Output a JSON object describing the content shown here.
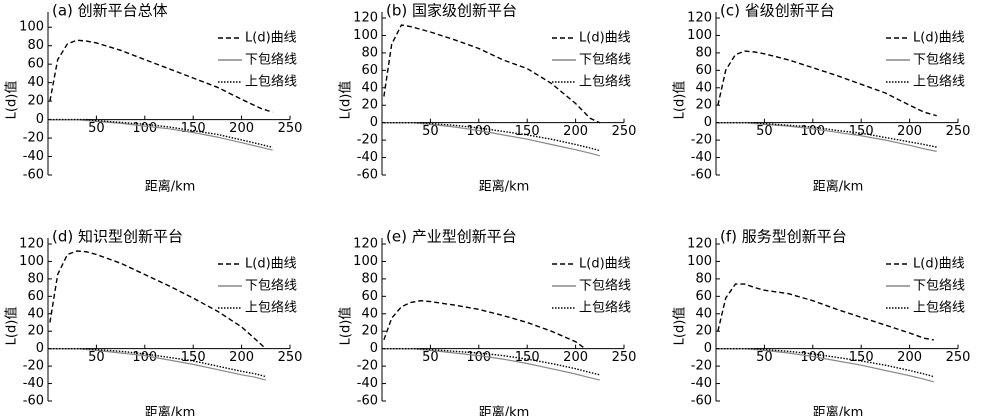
{
  "chart_data": [
    {
      "type": "line",
      "title": "(a) 创新平台总体",
      "xlabel": "距离/km",
      "ylabel": "L(d)值",
      "x": [
        2,
        10,
        20,
        30,
        40,
        50,
        75,
        100,
        125,
        150,
        175,
        200,
        220,
        232
      ],
      "xlim": [
        0,
        250
      ],
      "xticks": [
        50,
        100,
        150,
        200,
        250
      ],
      "ylim": [
        -60,
        110
      ],
      "yticks": [
        -60,
        -40,
        -20,
        0,
        20,
        40,
        60,
        80,
        100
      ],
      "series": [
        {
          "name": "L(d)曲线",
          "color": "#000000",
          "style": "dashed",
          "values": [
            20,
            65,
            82,
            86,
            85,
            83,
            75,
            65,
            55,
            45,
            35,
            22,
            12,
            8
          ]
        },
        {
          "name": "下包络线",
          "color": "#888888",
          "style": "solid",
          "values": [
            0,
            0,
            0,
            0,
            -1,
            -2,
            -4,
            -7,
            -10,
            -14,
            -19,
            -25,
            -30,
            -33
          ]
        },
        {
          "name": "上包络线",
          "color": "#000000",
          "style": "dotted",
          "values": [
            0,
            0,
            0,
            0,
            0,
            -1,
            -3,
            -5,
            -8,
            -12,
            -16,
            -22,
            -27,
            -30
          ]
        }
      ]
    },
    {
      "type": "line",
      "title": "(b) 国家级创新平台",
      "xlabel": "距离/km",
      "ylabel": "L(d)值",
      "x": [
        2,
        10,
        20,
        30,
        40,
        50,
        75,
        100,
        125,
        150,
        175,
        200,
        215,
        225
      ],
      "xlim": [
        0,
        250
      ],
      "xticks": [
        50,
        100,
        150,
        200,
        250
      ],
      "ylim": [
        -60,
        120
      ],
      "yticks": [
        -60,
        -40,
        -20,
        0,
        20,
        40,
        60,
        80,
        100,
        120
      ],
      "series": [
        {
          "name": "L(d)曲线",
          "color": "#000000",
          "style": "dashed",
          "values": [
            30,
            90,
            112,
            110,
            107,
            104,
            95,
            85,
            72,
            62,
            45,
            22,
            5,
            0
          ]
        },
        {
          "name": "下包络线",
          "color": "#888888",
          "style": "solid",
          "values": [
            0,
            0,
            0,
            0,
            -1,
            -2,
            -5,
            -9,
            -14,
            -19,
            -25,
            -31,
            -35,
            -38
          ]
        },
        {
          "name": "上包络线",
          "color": "#000000",
          "style": "dotted",
          "values": [
            0,
            0,
            0,
            0,
            0,
            -1,
            -3,
            -6,
            -10,
            -14,
            -19,
            -25,
            -29,
            -32
          ]
        }
      ]
    },
    {
      "type": "line",
      "title": "(c) 省级创新平台",
      "xlabel": "距离/km",
      "ylabel": "L(d)值",
      "x": [
        2,
        10,
        20,
        30,
        40,
        50,
        75,
        100,
        125,
        150,
        175,
        200,
        215,
        228
      ],
      "xlim": [
        0,
        250
      ],
      "xticks": [
        50,
        100,
        150,
        200,
        250
      ],
      "ylim": [
        -60,
        120
      ],
      "yticks": [
        -60,
        -40,
        -20,
        0,
        20,
        40,
        60,
        80,
        100,
        120
      ],
      "series": [
        {
          "name": "L(d)曲线",
          "color": "#000000",
          "style": "dashed",
          "values": [
            20,
            60,
            78,
            82,
            81,
            79,
            72,
            63,
            54,
            44,
            34,
            20,
            12,
            8
          ]
        },
        {
          "name": "下包络线",
          "color": "#888888",
          "style": "solid",
          "values": [
            0,
            0,
            0,
            0,
            -1,
            -2,
            -4,
            -7,
            -11,
            -15,
            -20,
            -26,
            -30,
            -33
          ]
        },
        {
          "name": "上包络线",
          "color": "#000000",
          "style": "dotted",
          "values": [
            0,
            0,
            0,
            0,
            0,
            -1,
            -3,
            -5,
            -9,
            -12,
            -17,
            -22,
            -25,
            -28
          ]
        }
      ]
    },
    {
      "type": "line",
      "title": "(d) 知识型创新平台",
      "xlabel": "距离/km",
      "ylabel": "L(d)值",
      "x": [
        2,
        10,
        20,
        30,
        40,
        50,
        75,
        100,
        125,
        150,
        175,
        200,
        215,
        225
      ],
      "xlim": [
        0,
        250
      ],
      "xticks": [
        50,
        100,
        150,
        200,
        250
      ],
      "ylim": [
        -60,
        120
      ],
      "yticks": [
        -60,
        -40,
        -20,
        0,
        20,
        40,
        60,
        80,
        100,
        120
      ],
      "series": [
        {
          "name": "L(d)曲线",
          "color": "#000000",
          "style": "dashed",
          "values": [
            30,
            85,
            108,
            112,
            111,
            108,
            98,
            85,
            72,
            58,
            43,
            25,
            10,
            0
          ]
        },
        {
          "name": "下包络线",
          "color": "#888888",
          "style": "solid",
          "values": [
            0,
            0,
            0,
            0,
            -1,
            -2,
            -5,
            -8,
            -13,
            -18,
            -24,
            -30,
            -33,
            -36
          ]
        },
        {
          "name": "上包络线",
          "color": "#000000",
          "style": "dotted",
          "values": [
            0,
            0,
            0,
            0,
            0,
            -1,
            -3,
            -6,
            -10,
            -14,
            -20,
            -26,
            -29,
            -32
          ]
        }
      ]
    },
    {
      "type": "line",
      "title": "(e) 产业型创新平台",
      "xlabel": "距离/km",
      "ylabel": "L(d)值",
      "x": [
        2,
        10,
        20,
        30,
        40,
        50,
        75,
        100,
        125,
        150,
        175,
        200,
        210,
        225
      ],
      "xlim": [
        0,
        250
      ],
      "xticks": [
        50,
        100,
        150,
        200,
        250
      ],
      "ylim": [
        -60,
        120
      ],
      "yticks": [
        -60,
        -40,
        -20,
        0,
        20,
        40,
        60,
        80,
        100,
        120
      ],
      "series": [
        {
          "name": "L(d)曲线",
          "color": "#000000",
          "style": "dashed",
          "values": [
            10,
            35,
            48,
            53,
            55,
            54,
            50,
            45,
            38,
            30,
            20,
            8,
            0,
            null
          ]
        },
        {
          "name": "下包络线",
          "color": "#888888",
          "style": "solid",
          "values": [
            0,
            0,
            0,
            0,
            -1,
            -2,
            -5,
            -8,
            -12,
            -17,
            -23,
            -29,
            -32,
            -36
          ]
        },
        {
          "name": "上包络线",
          "color": "#000000",
          "style": "dotted",
          "values": [
            0,
            0,
            0,
            0,
            0,
            -1,
            -3,
            -5,
            -8,
            -12,
            -17,
            -23,
            -26,
            -30
          ]
        }
      ]
    },
    {
      "type": "line",
      "title": "(f) 服务型创新平台",
      "xlabel": "距离/km",
      "ylabel": "L(d)值",
      "x": [
        2,
        10,
        20,
        30,
        40,
        50,
        75,
        100,
        125,
        150,
        175,
        200,
        215,
        225
      ],
      "xlim": [
        0,
        250
      ],
      "xticks": [
        50,
        100,
        150,
        200,
        250
      ],
      "ylim": [
        -60,
        120
      ],
      "yticks": [
        -60,
        -40,
        -20,
        0,
        20,
        40,
        60,
        80,
        100,
        120
      ],
      "series": [
        {
          "name": "L(d)曲线",
          "color": "#000000",
          "style": "dashed",
          "values": [
            20,
            58,
            74,
            74,
            70,
            67,
            63,
            55,
            45,
            36,
            27,
            18,
            12,
            10
          ]
        },
        {
          "name": "下包络线",
          "color": "#888888",
          "style": "solid",
          "values": [
            0,
            0,
            0,
            0,
            -1,
            -2,
            -5,
            -9,
            -14,
            -19,
            -25,
            -31,
            -35,
            -38
          ]
        },
        {
          "name": "上包络线",
          "color": "#000000",
          "style": "dotted",
          "values": [
            0,
            0,
            0,
            0,
            0,
            -1,
            -3,
            -6,
            -10,
            -14,
            -19,
            -25,
            -29,
            -32
          ]
        }
      ]
    }
  ]
}
